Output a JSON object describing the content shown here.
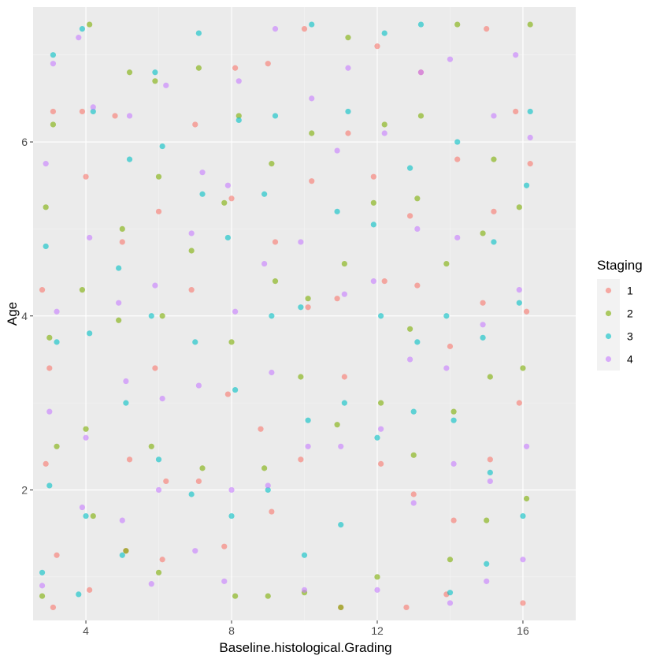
{
  "chart_data": {
    "type": "scatter",
    "title": "",
    "xlabel": "Baseline.histological.Grading",
    "ylabel": "Age",
    "xlim": [
      2.55,
      17.45
    ],
    "ylim": [
      0.5,
      7.55
    ],
    "x_ticks": [
      4,
      8,
      12,
      16
    ],
    "x_tick_labels": [
      "4",
      "8",
      "12",
      "16"
    ],
    "y_ticks": [
      2,
      4,
      6
    ],
    "y_tick_labels": [
      "2",
      "4",
      "6"
    ],
    "grid": true,
    "legend": {
      "title": "Staging",
      "placement": "right",
      "entries": [
        "1",
        "2",
        "3",
        "4"
      ]
    },
    "jitter": {
      "x_center_values": [
        3,
        4,
        5,
        6,
        7,
        8,
        9,
        10,
        11,
        12,
        13,
        14,
        15,
        16
      ],
      "x_spread": 0.4,
      "y_spread": 0.1,
      "note_points_per_group": "many overlapping jittered points"
    },
    "series": [
      {
        "name": "1",
        "color": "#F8766D",
        "points": [
          [
            2.8,
            4.3
          ],
          [
            3.1,
            0.65
          ],
          [
            3.2,
            1.25
          ],
          [
            2.9,
            2.3
          ],
          [
            3.0,
            3.4
          ],
          [
            3.1,
            6.35
          ],
          [
            4.1,
            0.85
          ],
          [
            3.9,
            6.35
          ],
          [
            4.0,
            5.6
          ],
          [
            5.1,
            1.3
          ],
          [
            5.0,
            4.85
          ],
          [
            4.8,
            6.3
          ],
          [
            5.2,
            2.35
          ],
          [
            6.1,
            1.2
          ],
          [
            5.9,
            3.4
          ],
          [
            6.0,
            5.2
          ],
          [
            6.2,
            2.1
          ],
          [
            7.0,
            6.2
          ],
          [
            6.9,
            4.3
          ],
          [
            7.1,
            2.1
          ],
          [
            7.8,
            1.35
          ],
          [
            8.1,
            6.85
          ],
          [
            8.0,
            5.35
          ],
          [
            7.9,
            3.1
          ],
          [
            9.0,
            6.9
          ],
          [
            9.2,
            4.85
          ],
          [
            8.8,
            2.7
          ],
          [
            9.1,
            1.75
          ],
          [
            10.0,
            7.3
          ],
          [
            10.1,
            4.1
          ],
          [
            9.9,
            2.35
          ],
          [
            10.2,
            5.55
          ],
          [
            11.0,
            0.65
          ],
          [
            11.1,
            3.3
          ],
          [
            10.9,
            4.2
          ],
          [
            11.2,
            6.1
          ],
          [
            11.9,
            5.6
          ],
          [
            12.1,
            2.3
          ],
          [
            12.2,
            4.4
          ],
          [
            12.0,
            7.1
          ],
          [
            12.8,
            0.65
          ],
          [
            13.0,
            1.95
          ],
          [
            13.1,
            4.35
          ],
          [
            12.9,
            5.15
          ],
          [
            13.2,
            6.8
          ],
          [
            13.9,
            0.8
          ],
          [
            14.1,
            1.65
          ],
          [
            14.0,
            3.65
          ],
          [
            14.2,
            5.8
          ],
          [
            15.0,
            7.3
          ],
          [
            15.1,
            2.35
          ],
          [
            14.9,
            4.15
          ],
          [
            15.2,
            5.2
          ],
          [
            16.0,
            0.7
          ],
          [
            15.9,
            3.0
          ],
          [
            16.1,
            4.05
          ],
          [
            16.2,
            5.75
          ],
          [
            15.8,
            6.35
          ]
        ]
      },
      {
        "name": "2",
        "color": "#7CAE00",
        "points": [
          [
            2.8,
            0.78
          ],
          [
            3.0,
            3.75
          ],
          [
            3.2,
            2.5
          ],
          [
            2.9,
            5.25
          ],
          [
            3.1,
            6.2
          ],
          [
            4.1,
            7.35
          ],
          [
            3.9,
            4.3
          ],
          [
            4.0,
            2.7
          ],
          [
            4.2,
            1.7
          ],
          [
            5.1,
            1.3
          ],
          [
            4.9,
            3.95
          ],
          [
            5.0,
            5.0
          ],
          [
            5.2,
            6.8
          ],
          [
            6.0,
            1.05
          ],
          [
            5.8,
            2.5
          ],
          [
            6.1,
            4.0
          ],
          [
            6.0,
            5.6
          ],
          [
            5.9,
            6.7
          ],
          [
            7.1,
            6.85
          ],
          [
            6.9,
            4.75
          ],
          [
            7.2,
            2.25
          ],
          [
            8.1,
            0.78
          ],
          [
            8.0,
            3.7
          ],
          [
            7.8,
            5.3
          ],
          [
            8.2,
            6.3
          ],
          [
            9.0,
            0.78
          ],
          [
            9.2,
            4.4
          ],
          [
            8.9,
            2.25
          ],
          [
            9.1,
            5.75
          ],
          [
            10.0,
            0.82
          ],
          [
            10.1,
            4.2
          ],
          [
            9.9,
            3.3
          ],
          [
            10.2,
            6.1
          ],
          [
            11.0,
            0.65
          ],
          [
            10.9,
            2.75
          ],
          [
            11.1,
            4.6
          ],
          [
            11.2,
            7.2
          ],
          [
            12.0,
            1.0
          ],
          [
            12.1,
            3.0
          ],
          [
            11.9,
            5.3
          ],
          [
            12.2,
            6.2
          ],
          [
            13.0,
            2.4
          ],
          [
            12.9,
            3.85
          ],
          [
            13.1,
            5.35
          ],
          [
            13.2,
            6.3
          ],
          [
            14.0,
            1.2
          ],
          [
            14.1,
            2.9
          ],
          [
            13.9,
            4.6
          ],
          [
            14.2,
            7.35
          ],
          [
            15.0,
            1.65
          ],
          [
            15.1,
            3.3
          ],
          [
            14.9,
            4.95
          ],
          [
            15.2,
            5.8
          ],
          [
            16.1,
            1.9
          ],
          [
            16.0,
            3.4
          ],
          [
            15.9,
            5.25
          ],
          [
            16.2,
            7.35
          ]
        ]
      },
      {
        "name": "3",
        "color": "#00BFC4",
        "points": [
          [
            2.8,
            1.05
          ],
          [
            3.0,
            2.05
          ],
          [
            3.2,
            3.7
          ],
          [
            2.9,
            4.8
          ],
          [
            3.1,
            7.0
          ],
          [
            3.8,
            0.8
          ],
          [
            4.0,
            1.7
          ],
          [
            4.1,
            3.8
          ],
          [
            4.2,
            6.35
          ],
          [
            3.9,
            7.3
          ],
          [
            5.0,
            1.25
          ],
          [
            5.1,
            3.0
          ],
          [
            4.9,
            4.55
          ],
          [
            5.2,
            5.8
          ],
          [
            6.0,
            2.35
          ],
          [
            5.8,
            4.0
          ],
          [
            6.1,
            5.95
          ],
          [
            5.9,
            6.8
          ],
          [
            7.0,
            3.7
          ],
          [
            7.2,
            5.4
          ],
          [
            6.9,
            1.95
          ],
          [
            7.1,
            7.25
          ],
          [
            8.0,
            1.7
          ],
          [
            8.1,
            3.15
          ],
          [
            7.9,
            4.9
          ],
          [
            8.2,
            6.25
          ],
          [
            9.0,
            2.0
          ],
          [
            9.1,
            4.0
          ],
          [
            8.9,
            5.4
          ],
          [
            9.2,
            6.3
          ],
          [
            10.0,
            1.25
          ],
          [
            10.1,
            2.8
          ],
          [
            9.9,
            4.1
          ],
          [
            10.2,
            7.35
          ],
          [
            11.0,
            1.6
          ],
          [
            11.1,
            3.0
          ],
          [
            10.9,
            5.2
          ],
          [
            11.2,
            6.35
          ],
          [
            12.0,
            2.6
          ],
          [
            12.1,
            4.0
          ],
          [
            11.9,
            5.05
          ],
          [
            12.2,
            7.25
          ],
          [
            13.0,
            2.9
          ],
          [
            13.1,
            3.7
          ],
          [
            12.9,
            5.7
          ],
          [
            13.2,
            7.35
          ],
          [
            14.0,
            0.82
          ],
          [
            14.1,
            2.8
          ],
          [
            13.9,
            4.0
          ],
          [
            14.2,
            6.0
          ],
          [
            15.0,
            1.15
          ],
          [
            15.1,
            2.2
          ],
          [
            14.9,
            3.75
          ],
          [
            15.2,
            4.85
          ],
          [
            16.0,
            1.7
          ],
          [
            15.9,
            4.15
          ],
          [
            16.1,
            5.5
          ],
          [
            16.2,
            6.35
          ]
        ]
      },
      {
        "name": "4",
        "color": "#C77CFF",
        "points": [
          [
            2.8,
            0.9
          ],
          [
            3.0,
            2.9
          ],
          [
            3.2,
            4.05
          ],
          [
            2.9,
            5.75
          ],
          [
            3.1,
            6.9
          ],
          [
            3.9,
            1.8
          ],
          [
            4.0,
            2.6
          ],
          [
            4.1,
            4.9
          ],
          [
            4.2,
            6.4
          ],
          [
            3.8,
            7.2
          ],
          [
            5.0,
            1.65
          ],
          [
            5.1,
            3.25
          ],
          [
            4.9,
            4.15
          ],
          [
            5.2,
            6.3
          ],
          [
            5.8,
            0.92
          ],
          [
            6.0,
            2.0
          ],
          [
            6.1,
            3.05
          ],
          [
            5.9,
            4.35
          ],
          [
            6.2,
            6.65
          ],
          [
            7.0,
            1.3
          ],
          [
            7.1,
            3.2
          ],
          [
            6.9,
            4.95
          ],
          [
            7.2,
            5.65
          ],
          [
            7.8,
            0.95
          ],
          [
            8.0,
            2.0
          ],
          [
            8.1,
            4.05
          ],
          [
            7.9,
            5.5
          ],
          [
            8.2,
            6.7
          ],
          [
            9.0,
            2.05
          ],
          [
            9.1,
            3.35
          ],
          [
            8.9,
            4.6
          ],
          [
            9.2,
            7.3
          ],
          [
            10.0,
            0.85
          ],
          [
            10.1,
            2.5
          ],
          [
            9.9,
            4.85
          ],
          [
            10.2,
            6.5
          ],
          [
            11.0,
            2.5
          ],
          [
            11.1,
            4.25
          ],
          [
            10.9,
            5.9
          ],
          [
            11.2,
            6.85
          ],
          [
            12.0,
            0.85
          ],
          [
            12.1,
            2.7
          ],
          [
            11.9,
            4.4
          ],
          [
            12.2,
            6.1
          ],
          [
            13.0,
            1.85
          ],
          [
            12.9,
            3.5
          ],
          [
            13.1,
            5.0
          ],
          [
            13.2,
            6.8
          ],
          [
            14.0,
            0.7
          ],
          [
            14.1,
            2.3
          ],
          [
            13.9,
            3.4
          ],
          [
            14.2,
            4.9
          ],
          [
            14.0,
            6.95
          ],
          [
            15.0,
            0.95
          ],
          [
            15.1,
            2.1
          ],
          [
            14.9,
            3.9
          ],
          [
            15.2,
            6.3
          ],
          [
            16.0,
            1.2
          ],
          [
            16.1,
            2.5
          ],
          [
            15.9,
            4.3
          ],
          [
            16.2,
            6.05
          ],
          [
            15.8,
            7.0
          ]
        ]
      }
    ]
  }
}
